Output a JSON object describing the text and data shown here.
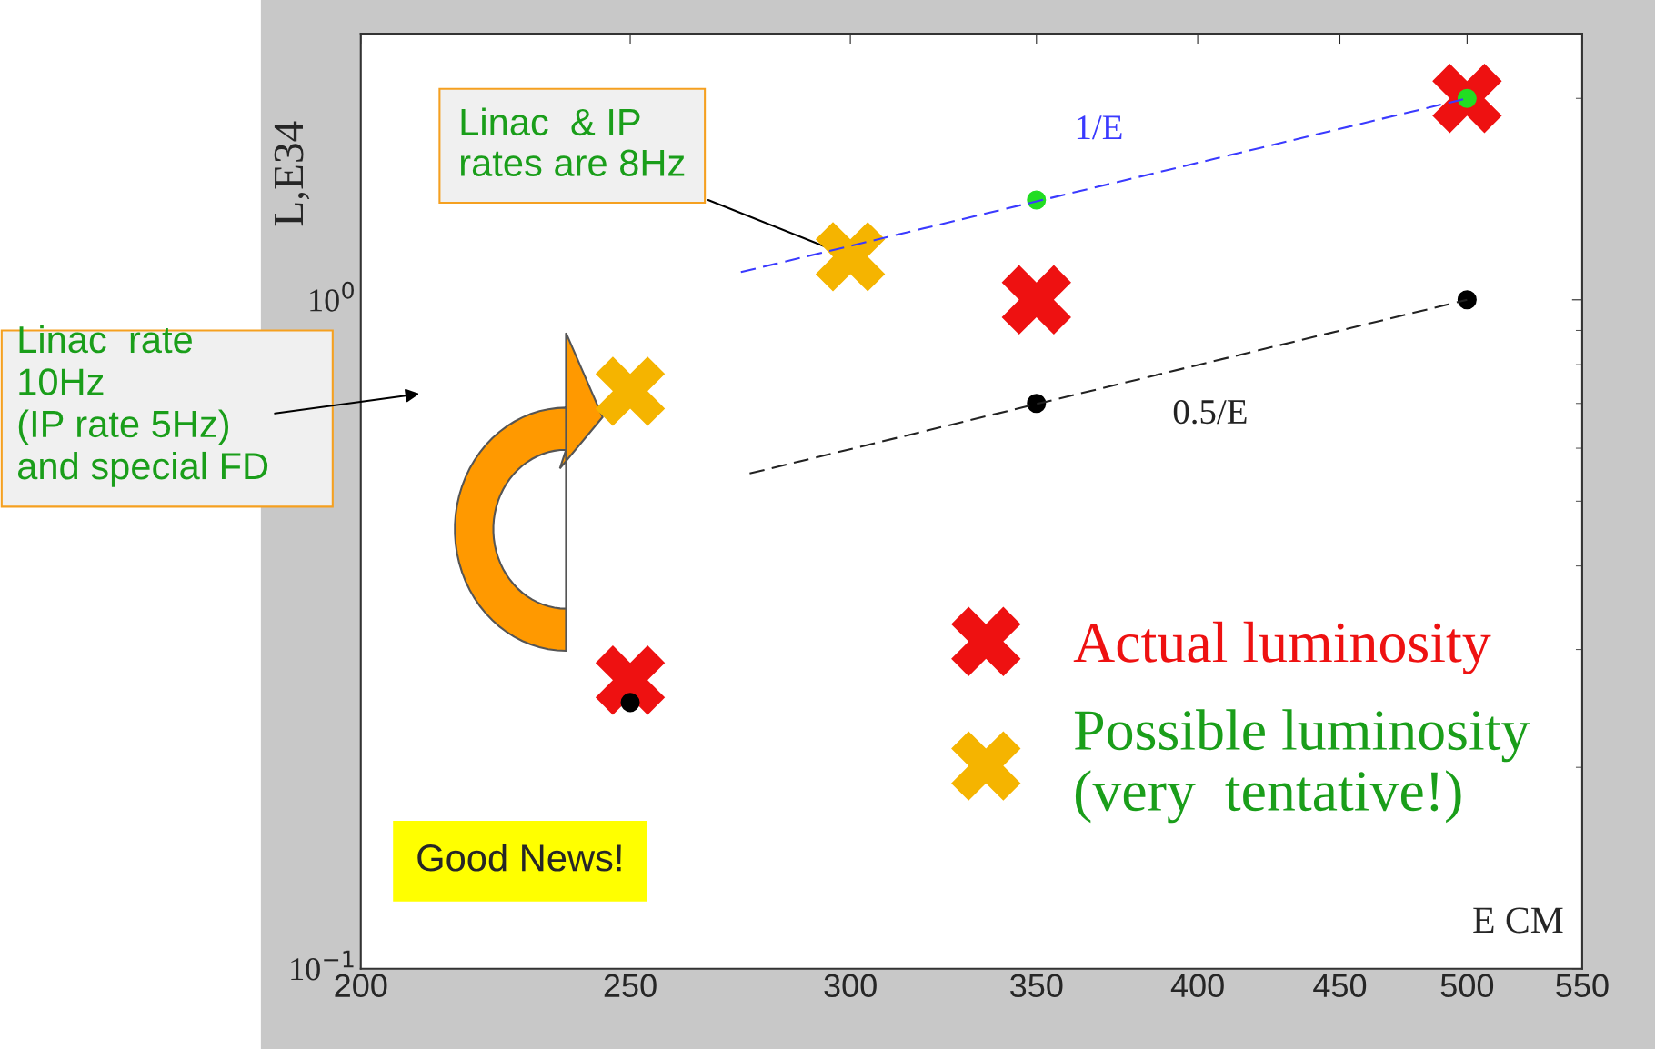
{
  "chart_data": {
    "type": "scatter",
    "ylabel": "L,E34",
    "xlabel": "E CM",
    "log": "xy",
    "xlim": [
      200,
      550
    ],
    "ylim": [
      0.1,
      2.5
    ],
    "xticks": [
      200,
      250,
      300,
      350,
      400,
      450,
      500,
      550
    ],
    "yticks": [
      {
        "value": 0.1,
        "label": "10$^{−1}$"
      },
      {
        "value": 1,
        "label": "10$^{0}$"
      }
    ],
    "grid": false,
    "legend": "bottom right",
    "series": [
      {
        "name": "1/E",
        "type": "line",
        "line_style": "dashed",
        "marker": "none",
        "color": "#3a3aff",
        "x": [
          274,
          500
        ],
        "values": [
          1.1,
          2.0
        ]
      },
      {
        "name": "0.5/E",
        "type": "line",
        "line_style": "dashed",
        "marker": "none",
        "color": "#222222",
        "x": [
          276,
          500
        ],
        "values": [
          0.55,
          1.0
        ]
      },
      {
        "marker": "circle",
        "color": "#000000",
        "x": [
          250,
          350,
          500
        ],
        "values": [
          0.25,
          0.7,
          1.0
        ]
      },
      {
        "name": "Actual luminosity",
        "marker": "cross",
        "color": "#ee1111",
        "x": [
          250,
          350,
          500
        ],
        "values": [
          0.27,
          1.0,
          2.0
        ]
      },
      {
        "name": "Possible luminosity\n(very  tentative!)",
        "marker": "cross",
        "color": "#f5b400",
        "x": [
          250,
          300
        ],
        "values": [
          0.73,
          1.16
        ]
      },
      {
        "marker": "circle",
        "color": "#22dd22",
        "x": [
          350,
          500
        ],
        "values": [
          1.41,
          2.0
        ]
      }
    ],
    "annotations": [
      {
        "text": "Linac  & IP\nrates are 8Hz",
        "x": 300,
        "y": 1.16
      },
      "Linac  rate\n10Hz\n(IP rate 5Hz)\nand special FD",
      "Good News!"
    ]
  }
}
